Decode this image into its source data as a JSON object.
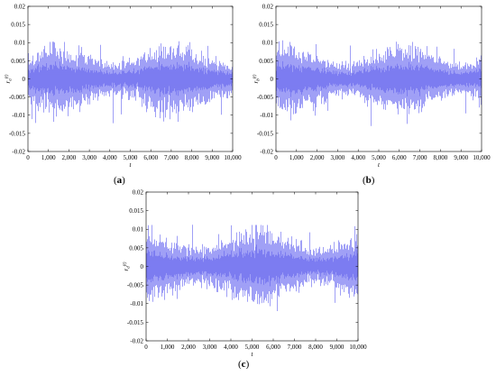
{
  "panels": [
    {
      "id": "a",
      "label_open": "(",
      "label_letter": "a",
      "label_close": ")",
      "ylabel": "r_a(t)",
      "xlabel": "t"
    },
    {
      "id": "b",
      "label_open": "(",
      "label_letter": "b",
      "label_close": ")",
      "ylabel": "r_b(t)",
      "xlabel": "t"
    },
    {
      "id": "c",
      "label_open": "(",
      "label_letter": "c",
      "label_close": ")",
      "ylabel": "r_d(t)",
      "xlabel": "t"
    }
  ],
  "chart_data": [
    {
      "type": "line",
      "title": "",
      "xlabel": "t",
      "ylabel": "r_a(t)",
      "xlim": [
        0,
        10000
      ],
      "ylim": [
        -0.02,
        0.02
      ],
      "x_ticks": [
        0,
        1000,
        2000,
        3000,
        4000,
        5000,
        6000,
        7000,
        8000,
        9000,
        10000
      ],
      "x_tick_labels": [
        "0",
        "1,000",
        "2,000",
        "3,000",
        "4,000",
        "5,000",
        "6,000",
        "7,000",
        "8,000",
        "9,000",
        "10,000"
      ],
      "y_ticks": [
        -0.02,
        -0.015,
        -0.01,
        -0.005,
        0,
        0.005,
        0.01,
        0.015,
        0.02
      ],
      "y_tick_labels": [
        "-0.02",
        "-0.015",
        "-0.01",
        "-0.005",
        "0",
        "0.005",
        "0.01",
        "0.015",
        "0.02"
      ],
      "grid": false,
      "line_color": "#7b7bf2",
      "series_description": "noise-like residual series, n = 10000, mean 0, std approx 0.003",
      "noise_std": 0.003,
      "max": 0.0105,
      "min": -0.0122
    },
    {
      "type": "line",
      "title": "",
      "xlabel": "t",
      "ylabel": "r_b(t)",
      "xlim": [
        0,
        10000
      ],
      "ylim": [
        -0.02,
        0.02
      ],
      "x_ticks": [
        0,
        1000,
        2000,
        3000,
        4000,
        5000,
        6000,
        7000,
        8000,
        9000,
        10000
      ],
      "x_tick_labels": [
        "0",
        "1,000",
        "2,000",
        "3,000",
        "4,000",
        "5,000",
        "6,000",
        "7,000",
        "8,000",
        "9,000",
        "10,000"
      ],
      "y_ticks": [
        -0.02,
        -0.015,
        -0.01,
        -0.005,
        0,
        0.005,
        0.01,
        0.015,
        0.02
      ],
      "y_tick_labels": [
        "-0.02",
        "-0.015",
        "-0.01",
        "-0.005",
        "0",
        "0.005",
        "0.01",
        "0.015",
        "0.02"
      ],
      "grid": false,
      "line_color": "#7b7bf2",
      "noise_std": 0.003,
      "max": 0.0105,
      "min": -0.013
    },
    {
      "type": "line",
      "title": "",
      "xlabel": "t",
      "ylabel": "r_d(t)",
      "xlim": [
        0,
        10000
      ],
      "ylim": [
        -0.02,
        0.02
      ],
      "x_ticks": [
        0,
        1000,
        2000,
        3000,
        4000,
        5000,
        6000,
        7000,
        8000,
        9000,
        10000
      ],
      "x_tick_labels": [
        "0",
        "1,000",
        "2,000",
        "3,000",
        "4,000",
        "5,000",
        "6,000",
        "7,000",
        "8,000",
        "9,000",
        "10,000"
      ],
      "y_ticks": [
        -0.02,
        -0.015,
        -0.01,
        -0.005,
        0,
        0.005,
        0.01,
        0.015,
        0.02
      ],
      "y_tick_labels": [
        "-0.02",
        "-0.015",
        "-0.01",
        "-0.005",
        "0",
        "0.005",
        "0.01",
        "0.015",
        "0.02"
      ],
      "grid": false,
      "line_color": "#7b7bf2",
      "noise_std": 0.0033,
      "max": 0.0115,
      "min": -0.012
    }
  ]
}
